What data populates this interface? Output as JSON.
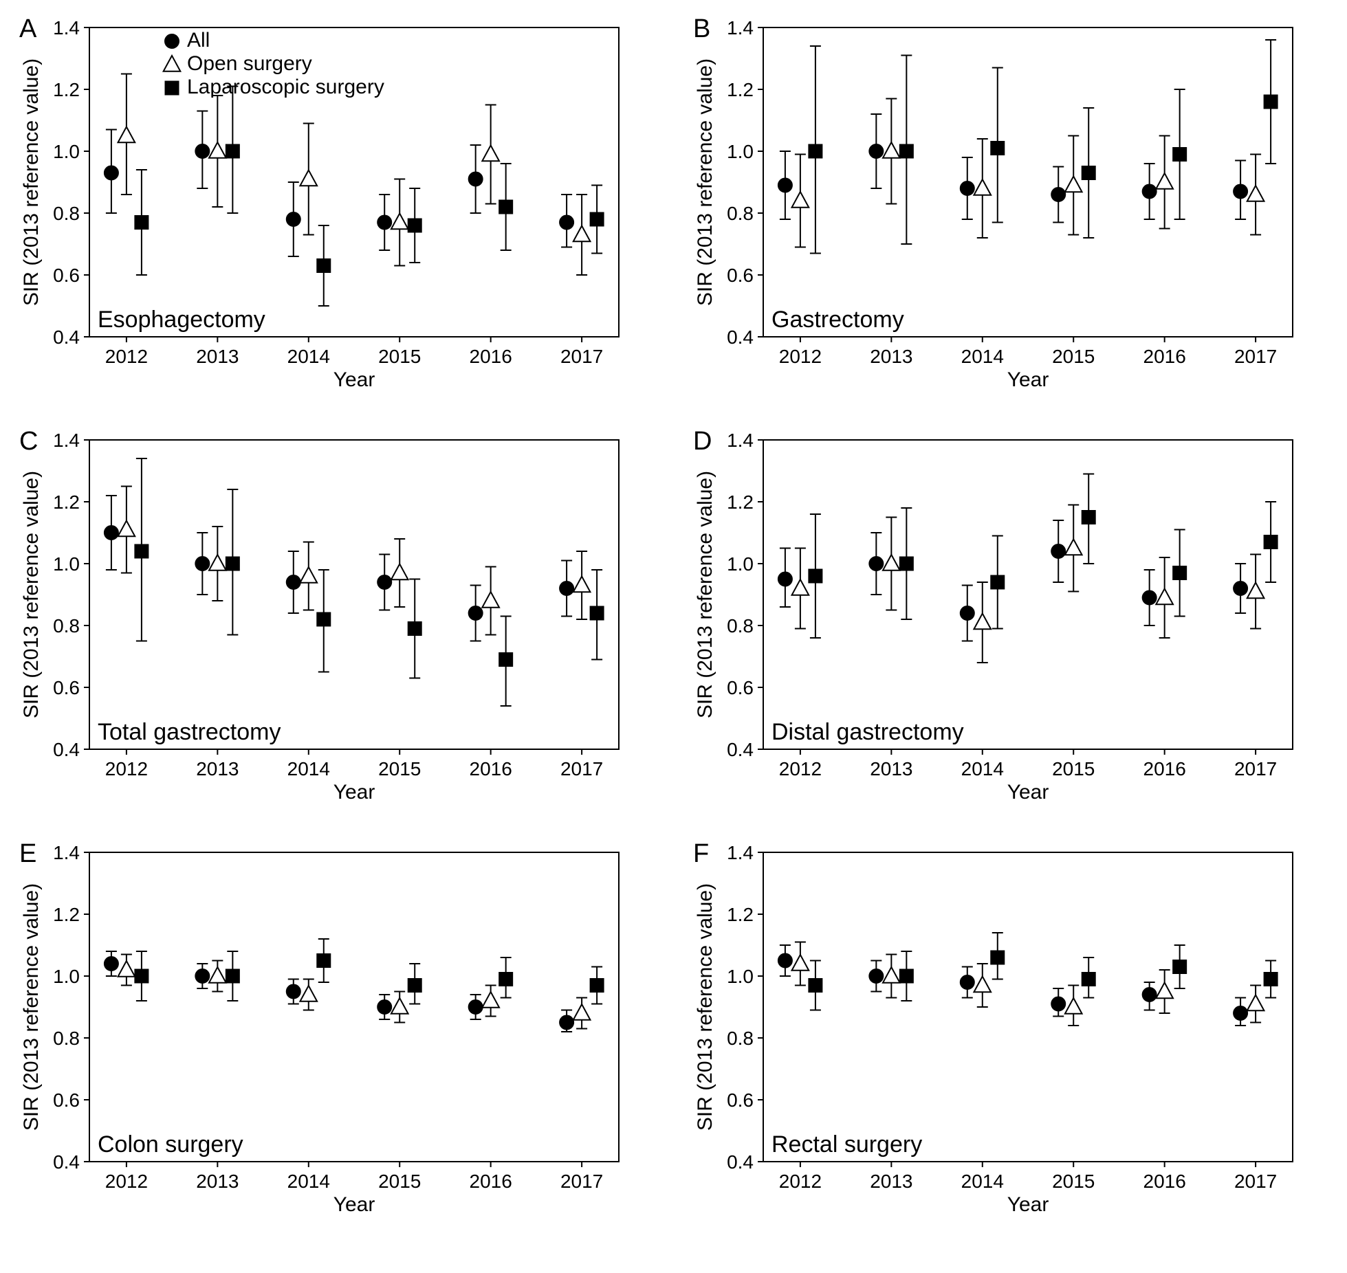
{
  "global": {
    "years": [
      "2012",
      "2013",
      "2014",
      "2015",
      "2016",
      "2017"
    ],
    "ylabel": "SIR (2013 reference value)",
    "xlabel": "Year",
    "legend": {
      "all": "All",
      "open": "Open surgery",
      "lap": "Laparoscopic surgery"
    },
    "colors": {
      "marker_fill_all": "#000000",
      "marker_fill_open": "#ffffff",
      "marker_fill_lap": "#000000",
      "marker_stroke": "#000000",
      "background": "#ffffff",
      "axis": "#000000"
    },
    "marker_size": 10,
    "cap_halfwidth": 8,
    "xoffsets": {
      "all": -22,
      "open": 0,
      "lap": 22
    },
    "fontsize": {
      "tick": 28,
      "axis": 30,
      "letter": 38,
      "title": 34,
      "legend": 30
    },
    "show_legend_on": "A"
  },
  "panels": [
    {
      "letter": "A",
      "title": "Esophagectomy",
      "ylim": [
        0.4,
        1.4
      ],
      "ytick_step": 0.2,
      "series": {
        "all": [
          {
            "y": 0.93,
            "lo": 0.8,
            "hi": 1.07
          },
          {
            "y": 1.0,
            "lo": 0.88,
            "hi": 1.13
          },
          {
            "y": 0.78,
            "lo": 0.66,
            "hi": 0.9
          },
          {
            "y": 0.77,
            "lo": 0.68,
            "hi": 0.86
          },
          {
            "y": 0.91,
            "lo": 0.8,
            "hi": 1.02
          },
          {
            "y": 0.77,
            "lo": 0.69,
            "hi": 0.86
          }
        ],
        "open": [
          {
            "y": 1.05,
            "lo": 0.86,
            "hi": 1.25
          },
          {
            "y": 1.0,
            "lo": 0.82,
            "hi": 1.18
          },
          {
            "y": 0.91,
            "lo": 0.73,
            "hi": 1.09
          },
          {
            "y": 0.77,
            "lo": 0.63,
            "hi": 0.91
          },
          {
            "y": 0.99,
            "lo": 0.83,
            "hi": 1.15
          },
          {
            "y": 0.73,
            "lo": 0.6,
            "hi": 0.86
          }
        ],
        "lap": [
          {
            "y": 0.77,
            "lo": 0.6,
            "hi": 0.94
          },
          {
            "y": 1.0,
            "lo": 0.8,
            "hi": 1.21
          },
          {
            "y": 0.63,
            "lo": 0.5,
            "hi": 0.76
          },
          {
            "y": 0.76,
            "lo": 0.64,
            "hi": 0.88
          },
          {
            "y": 0.82,
            "lo": 0.68,
            "hi": 0.96
          },
          {
            "y": 0.78,
            "lo": 0.67,
            "hi": 0.89
          }
        ]
      }
    },
    {
      "letter": "B",
      "title": "Gastrectomy",
      "ylim": [
        0.4,
        1.4
      ],
      "ytick_step": 0.2,
      "series": {
        "all": [
          {
            "y": 0.89,
            "lo": 0.78,
            "hi": 1.0
          },
          {
            "y": 1.0,
            "lo": 0.88,
            "hi": 1.12
          },
          {
            "y": 0.88,
            "lo": 0.78,
            "hi": 0.98
          },
          {
            "y": 0.86,
            "lo": 0.77,
            "hi": 0.95
          },
          {
            "y": 0.87,
            "lo": 0.78,
            "hi": 0.96
          },
          {
            "y": 0.87,
            "lo": 0.78,
            "hi": 0.97
          }
        ],
        "open": [
          {
            "y": 0.84,
            "lo": 0.69,
            "hi": 0.99
          },
          {
            "y": 1.0,
            "lo": 0.83,
            "hi": 1.17
          },
          {
            "y": 0.88,
            "lo": 0.72,
            "hi": 1.04
          },
          {
            "y": 0.89,
            "lo": 0.73,
            "hi": 1.05
          },
          {
            "y": 0.9,
            "lo": 0.75,
            "hi": 1.05
          },
          {
            "y": 0.86,
            "lo": 0.73,
            "hi": 0.99
          }
        ],
        "lap": [
          {
            "y": 1.0,
            "lo": 0.67,
            "hi": 1.34
          },
          {
            "y": 1.0,
            "lo": 0.7,
            "hi": 1.31
          },
          {
            "y": 1.01,
            "lo": 0.77,
            "hi": 1.27
          },
          {
            "y": 0.93,
            "lo": 0.72,
            "hi": 1.14
          },
          {
            "y": 0.99,
            "lo": 0.78,
            "hi": 1.2
          },
          {
            "y": 1.16,
            "lo": 0.96,
            "hi": 1.36
          }
        ]
      }
    },
    {
      "letter": "C",
      "title": "Total gastrectomy",
      "ylim": [
        0.4,
        1.4
      ],
      "ytick_step": 0.2,
      "series": {
        "all": [
          {
            "y": 1.1,
            "lo": 0.98,
            "hi": 1.22
          },
          {
            "y": 1.0,
            "lo": 0.9,
            "hi": 1.1
          },
          {
            "y": 0.94,
            "lo": 0.84,
            "hi": 1.04
          },
          {
            "y": 0.94,
            "lo": 0.85,
            "hi": 1.03
          },
          {
            "y": 0.84,
            "lo": 0.75,
            "hi": 0.93
          },
          {
            "y": 0.92,
            "lo": 0.83,
            "hi": 1.01
          }
        ],
        "open": [
          {
            "y": 1.11,
            "lo": 0.97,
            "hi": 1.25
          },
          {
            "y": 1.0,
            "lo": 0.88,
            "hi": 1.12
          },
          {
            "y": 0.96,
            "lo": 0.85,
            "hi": 1.07
          },
          {
            "y": 0.97,
            "lo": 0.86,
            "hi": 1.08
          },
          {
            "y": 0.88,
            "lo": 0.77,
            "hi": 0.99
          },
          {
            "y": 0.93,
            "lo": 0.82,
            "hi": 1.04
          }
        ],
        "lap": [
          {
            "y": 1.04,
            "lo": 0.75,
            "hi": 1.34
          },
          {
            "y": 1.0,
            "lo": 0.77,
            "hi": 1.24
          },
          {
            "y": 0.82,
            "lo": 0.65,
            "hi": 0.98
          },
          {
            "y": 0.79,
            "lo": 0.63,
            "hi": 0.95
          },
          {
            "y": 0.69,
            "lo": 0.54,
            "hi": 0.83
          },
          {
            "y": 0.84,
            "lo": 0.69,
            "hi": 0.98
          }
        ]
      }
    },
    {
      "letter": "D",
      "title": "Distal gastrectomy",
      "ylim": [
        0.4,
        1.4
      ],
      "ytick_step": 0.2,
      "series": {
        "all": [
          {
            "y": 0.95,
            "lo": 0.86,
            "hi": 1.05
          },
          {
            "y": 1.0,
            "lo": 0.9,
            "hi": 1.1
          },
          {
            "y": 0.84,
            "lo": 0.75,
            "hi": 0.93
          },
          {
            "y": 1.04,
            "lo": 0.94,
            "hi": 1.14
          },
          {
            "y": 0.89,
            "lo": 0.8,
            "hi": 0.98
          },
          {
            "y": 0.92,
            "lo": 0.84,
            "hi": 1.0
          }
        ],
        "open": [
          {
            "y": 0.92,
            "lo": 0.79,
            "hi": 1.05
          },
          {
            "y": 1.0,
            "lo": 0.85,
            "hi": 1.15
          },
          {
            "y": 0.81,
            "lo": 0.68,
            "hi": 0.94
          },
          {
            "y": 1.05,
            "lo": 0.91,
            "hi": 1.19
          },
          {
            "y": 0.89,
            "lo": 0.76,
            "hi": 1.02
          },
          {
            "y": 0.91,
            "lo": 0.79,
            "hi": 1.03
          }
        ],
        "lap": [
          {
            "y": 0.96,
            "lo": 0.76,
            "hi": 1.16
          },
          {
            "y": 1.0,
            "lo": 0.82,
            "hi": 1.18
          },
          {
            "y": 0.94,
            "lo": 0.79,
            "hi": 1.09
          },
          {
            "y": 1.15,
            "lo": 1.0,
            "hi": 1.29
          },
          {
            "y": 0.97,
            "lo": 0.83,
            "hi": 1.11
          },
          {
            "y": 1.07,
            "lo": 0.94,
            "hi": 1.2
          }
        ]
      }
    },
    {
      "letter": "E",
      "title": "Colon surgery",
      "ylim": [
        0.4,
        1.4
      ],
      "ytick_step": 0.2,
      "series": {
        "all": [
          {
            "y": 1.04,
            "lo": 1.0,
            "hi": 1.08
          },
          {
            "y": 1.0,
            "lo": 0.96,
            "hi": 1.04
          },
          {
            "y": 0.95,
            "lo": 0.91,
            "hi": 0.99
          },
          {
            "y": 0.9,
            "lo": 0.86,
            "hi": 0.94
          },
          {
            "y": 0.9,
            "lo": 0.86,
            "hi": 0.94
          },
          {
            "y": 0.85,
            "lo": 0.82,
            "hi": 0.89
          }
        ],
        "open": [
          {
            "y": 1.02,
            "lo": 0.97,
            "hi": 1.07
          },
          {
            "y": 1.0,
            "lo": 0.95,
            "hi": 1.05
          },
          {
            "y": 0.94,
            "lo": 0.89,
            "hi": 0.99
          },
          {
            "y": 0.9,
            "lo": 0.85,
            "hi": 0.95
          },
          {
            "y": 0.92,
            "lo": 0.87,
            "hi": 0.97
          },
          {
            "y": 0.88,
            "lo": 0.83,
            "hi": 0.93
          }
        ],
        "lap": [
          {
            "y": 1.0,
            "lo": 0.92,
            "hi": 1.08
          },
          {
            "y": 1.0,
            "lo": 0.92,
            "hi": 1.08
          },
          {
            "y": 1.05,
            "lo": 0.98,
            "hi": 1.12
          },
          {
            "y": 0.97,
            "lo": 0.91,
            "hi": 1.04
          },
          {
            "y": 0.99,
            "lo": 0.93,
            "hi": 1.06
          },
          {
            "y": 0.97,
            "lo": 0.91,
            "hi": 1.03
          }
        ]
      }
    },
    {
      "letter": "F",
      "title": "Rectal surgery",
      "ylim": [
        0.4,
        1.4
      ],
      "ytick_step": 0.2,
      "series": {
        "all": [
          {
            "y": 1.05,
            "lo": 1.0,
            "hi": 1.1
          },
          {
            "y": 1.0,
            "lo": 0.95,
            "hi": 1.05
          },
          {
            "y": 0.98,
            "lo": 0.93,
            "hi": 1.03
          },
          {
            "y": 0.91,
            "lo": 0.87,
            "hi": 0.96
          },
          {
            "y": 0.94,
            "lo": 0.89,
            "hi": 0.98
          },
          {
            "y": 0.88,
            "lo": 0.84,
            "hi": 0.93
          }
        ],
        "open": [
          {
            "y": 1.04,
            "lo": 0.97,
            "hi": 1.11
          },
          {
            "y": 1.0,
            "lo": 0.93,
            "hi": 1.07
          },
          {
            "y": 0.97,
            "lo": 0.9,
            "hi": 1.04
          },
          {
            "y": 0.9,
            "lo": 0.84,
            "hi": 0.97
          },
          {
            "y": 0.95,
            "lo": 0.88,
            "hi": 1.02
          },
          {
            "y": 0.91,
            "lo": 0.85,
            "hi": 0.97
          }
        ],
        "lap": [
          {
            "y": 0.97,
            "lo": 0.89,
            "hi": 1.05
          },
          {
            "y": 1.0,
            "lo": 0.92,
            "hi": 1.08
          },
          {
            "y": 1.06,
            "lo": 0.99,
            "hi": 1.14
          },
          {
            "y": 0.99,
            "lo": 0.93,
            "hi": 1.06
          },
          {
            "y": 1.03,
            "lo": 0.96,
            "hi": 1.1
          },
          {
            "y": 0.99,
            "lo": 0.93,
            "hi": 1.05
          }
        ]
      }
    }
  ]
}
